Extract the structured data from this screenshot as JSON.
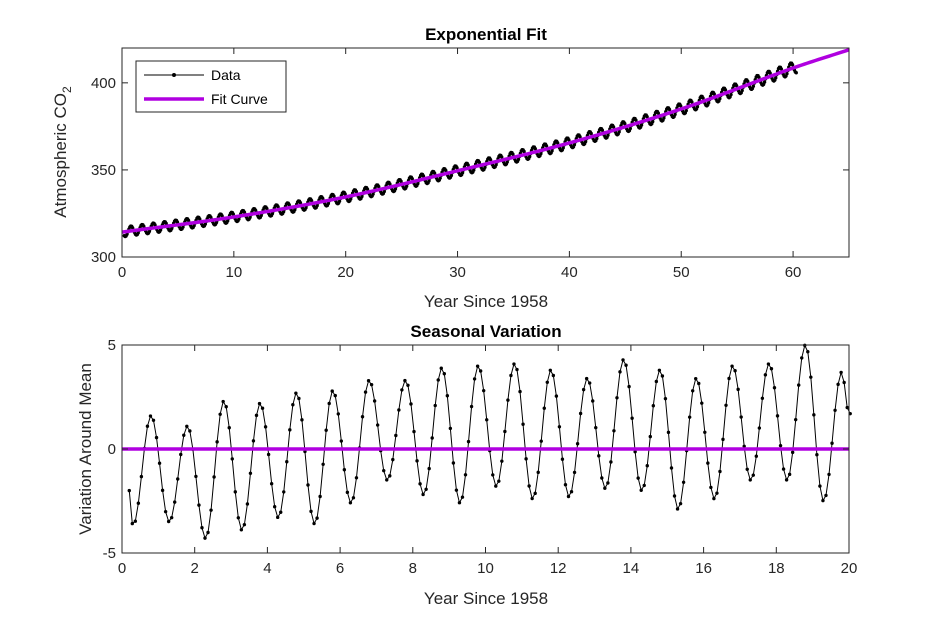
{
  "chart_data": [
    {
      "type": "line",
      "title": "Exponential Fit",
      "xlabel": "Year Since 1958",
      "ylabel": "Atmospheric CO",
      "ylabel_sub": "2",
      "xlim": [
        0,
        65
      ],
      "ylim": [
        300,
        420
      ],
      "xticks": [
        0,
        10,
        20,
        30,
        40,
        50,
        60
      ],
      "yticks": [
        300,
        350,
        400
      ],
      "legend": {
        "placement": "top-left",
        "entries": [
          "Data",
          "Fit Curve"
        ]
      },
      "series": [
        {
          "name": "Data",
          "color": "#000000",
          "marker": "dot",
          "model": "trend_plus_seasonal",
          "x_range": [
            0.2,
            60.3
          ],
          "samples_per_year": 12,
          "trend_points": [
            [
              0,
              314.3
            ],
            [
              10,
              323
            ],
            [
              20,
              334.5
            ],
            [
              30,
              349.5
            ],
            [
              40,
              365.5
            ],
            [
              50,
              385
            ],
            [
              60,
              408.5
            ]
          ],
          "seasonal_amplitude_start": 2.8,
          "seasonal_amplitude_end": 3.4
        },
        {
          "name": "Fit Curve",
          "color": "#b000e0",
          "x_range": [
            0,
            65
          ],
          "points": [
            [
              0,
              314.3
            ],
            [
              10,
              323
            ],
            [
              20,
              334.5
            ],
            [
              30,
              349.5
            ],
            [
              40,
              365.5
            ],
            [
              50,
              385
            ],
            [
              60,
              408.5
            ],
            [
              65,
              419
            ]
          ]
        }
      ]
    },
    {
      "type": "line",
      "title": "Seasonal Variation",
      "xlabel": "Year Since 1958",
      "ylabel": "Variation Around Mean",
      "xlim": [
        0,
        20
      ],
      "ylim": [
        -5,
        5
      ],
      "xticks": [
        0,
        2,
        4,
        6,
        8,
        10,
        12,
        14,
        16,
        18,
        20
      ],
      "yticks": [
        -5,
        0,
        5
      ],
      "series": [
        {
          "name": "",
          "color": "#000000",
          "marker": "dot",
          "samples_per_year": 12,
          "x_start": 0.2,
          "seasonal_maxima": [
            [
              0.8,
              1.6
            ],
            [
              1.8,
              1.1
            ],
            [
              2.8,
              2.3
            ],
            [
              3.8,
              2.2
            ],
            [
              4.8,
              2.7
            ],
            [
              5.8,
              2.8
            ],
            [
              6.8,
              3.3
            ],
            [
              7.8,
              3.3
            ],
            [
              8.8,
              3.9
            ],
            [
              9.8,
              4.0
            ],
            [
              10.8,
              4.1
            ],
            [
              11.8,
              3.8
            ],
            [
              12.8,
              3.4
            ],
            [
              13.8,
              4.3
            ],
            [
              14.8,
              3.8
            ],
            [
              15.8,
              3.4
            ],
            [
              16.8,
              4.0
            ],
            [
              17.8,
              4.1
            ],
            [
              18.8,
              5.0
            ],
            [
              19.8,
              3.7
            ]
          ],
          "seasonal_minima": [
            [
              0.3,
              -3.7
            ],
            [
              1.3,
              -3.5
            ],
            [
              2.3,
              -4.3
            ],
            [
              3.3,
              -3.9
            ],
            [
              4.3,
              -3.3
            ],
            [
              5.3,
              -3.6
            ],
            [
              6.3,
              -2.6
            ],
            [
              7.3,
              -1.5
            ],
            [
              8.3,
              -2.2
            ],
            [
              9.3,
              -2.6
            ],
            [
              10.3,
              -1.8
            ],
            [
              11.3,
              -2.4
            ],
            [
              12.3,
              -2.3
            ],
            [
              13.3,
              -1.9
            ],
            [
              14.3,
              -2.0
            ],
            [
              15.3,
              -2.9
            ],
            [
              16.3,
              -2.4
            ],
            [
              17.3,
              -1.5
            ],
            [
              18.3,
              -1.5
            ],
            [
              19.3,
              -2.5
            ]
          ],
          "first_value": -2.0,
          "last_value": 1.7
        },
        {
          "name": "",
          "color": "#b000e0",
          "points": [
            [
              0,
              0
            ],
            [
              20,
              0
            ]
          ]
        }
      ]
    }
  ]
}
